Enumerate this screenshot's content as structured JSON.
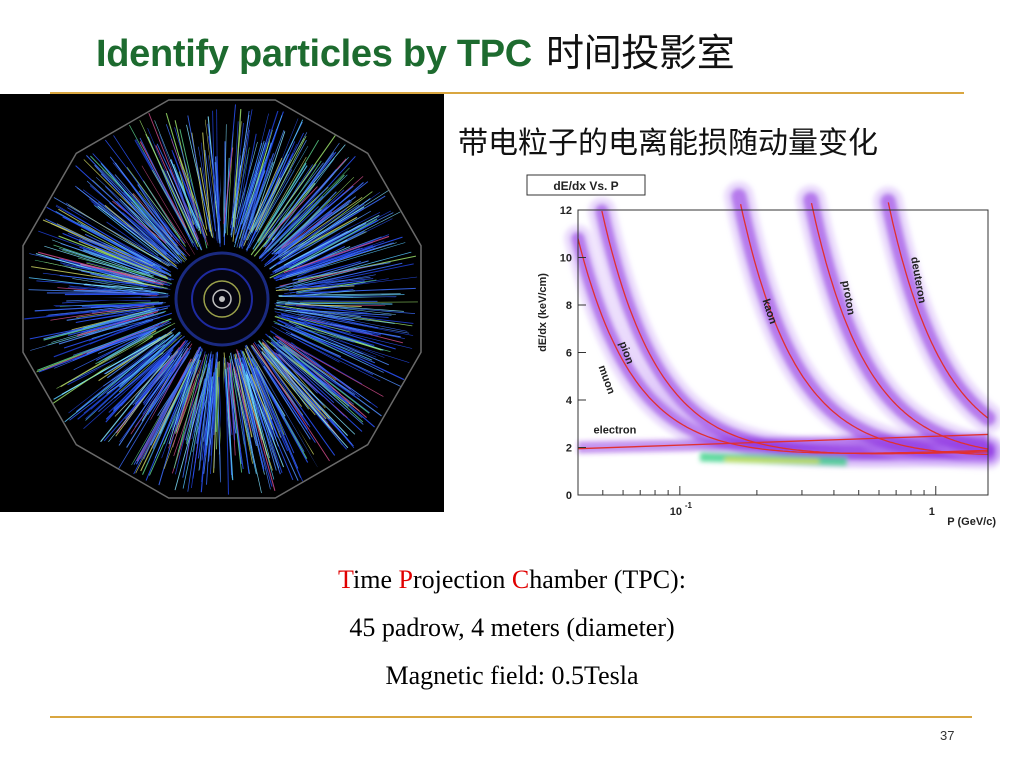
{
  "slide": {
    "title_en": "Identify particles by TPC",
    "title_cn": "时间投影室",
    "subtitle": "带电粒子的电离能损随动量变化",
    "page_number": "37"
  },
  "colors": {
    "title_green": "#1d6b2f",
    "rule_gold": "#d9a640",
    "caption_red": "#e00000",
    "curve_red": "#e03030"
  },
  "tpc_image": {
    "description_icon": "tpc-event-display-icon"
  },
  "chart_data": {
    "type": "scatter",
    "title": "dE/dx Vs. P",
    "xlabel": "P (GeV/c)",
    "ylabel": "dE/dx (keV/cm)",
    "x_scale": "log",
    "xlim": [
      0.04,
      1.6
    ],
    "ylim": [
      0,
      12
    ],
    "x_ticks": [
      {
        "value": 0.1,
        "label": "10",
        "sup": "-1"
      },
      {
        "value": 1,
        "label": "1",
        "sup": ""
      }
    ],
    "y_ticks": [
      0,
      2,
      4,
      6,
      8,
      10,
      12
    ],
    "bands": [
      {
        "name": "electron",
        "label_x": 0.046,
        "label_y": 2.6,
        "label_rotation": 0
      },
      {
        "name": "muon",
        "label_x": 0.048,
        "label_y": 5.4,
        "label_rotation": 70
      },
      {
        "name": "pion",
        "label_x": 0.058,
        "label_y": 6.4,
        "label_rotation": 70
      },
      {
        "name": "kaon",
        "label_x": 0.21,
        "label_y": 8.2,
        "label_rotation": 72
      },
      {
        "name": "proton",
        "label_x": 0.43,
        "label_y": 9.0,
        "label_rotation": 80
      },
      {
        "name": "deuteron",
        "label_x": 0.8,
        "label_y": 10.0,
        "label_rotation": 80
      }
    ]
  },
  "caption": {
    "line1": [
      {
        "text": "T",
        "red": true
      },
      {
        "text": "ime ",
        "red": false
      },
      {
        "text": "P",
        "red": true
      },
      {
        "text": "rojection ",
        "red": false
      },
      {
        "text": "C",
        "red": true
      },
      {
        "text": "hamber (TPC):",
        "red": false
      }
    ],
    "line2": "45 padrow, 4 meters (diameter)",
    "line3": "Magnetic field: 0.5Tesla"
  }
}
